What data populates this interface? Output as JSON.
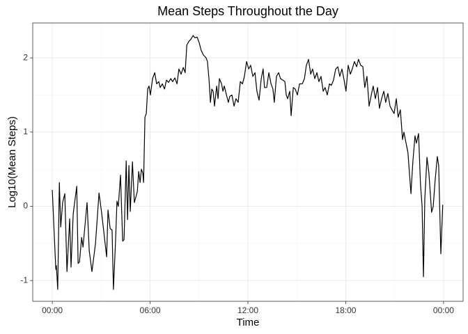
{
  "chart_data": {
    "type": "line",
    "title": "Mean Steps Throughout the Day",
    "x_label": "Time",
    "y_label": "Log10(Mean Steps)",
    "color": "#000000",
    "grid": true,
    "x": [
      0,
      8,
      13,
      15,
      20,
      26,
      31,
      38,
      46,
      54,
      64,
      69,
      77,
      90,
      95,
      100,
      108,
      113,
      128,
      136,
      146,
      159,
      172,
      182,
      200,
      205,
      213,
      220,
      225,
      233,
      238,
      243,
      251,
      259,
      264,
      272,
      277,
      282,
      287,
      295,
      302,
      313,
      318,
      323,
      328,
      333,
      336,
      341,
      346,
      351,
      356,
      361,
      369,
      377,
      384,
      392,
      397,
      405,
      413,
      420,
      428,
      436,
      443,
      451,
      459,
      466,
      474,
      482,
      489,
      495,
      502,
      510,
      518,
      525,
      533,
      541,
      548,
      556,
      566,
      571,
      577,
      582,
      587,
      592,
      597,
      605,
      610,
      615,
      623,
      628,
      633,
      641,
      648,
      653,
      661,
      669,
      676,
      684,
      692,
      700,
      707,
      715,
      723,
      730,
      738,
      746,
      753,
      761,
      769,
      776,
      781,
      789,
      797,
      805,
      812,
      817,
      825,
      833,
      840,
      848,
      856,
      861,
      866,
      874,
      879,
      887,
      894,
      902,
      910,
      920,
      928,
      935,
      943,
      951,
      958,
      966,
      974,
      981,
      989,
      997,
      1004,
      1012,
      1020,
      1027,
      1035,
      1043,
      1051,
      1058,
      1066,
      1074,
      1081,
      1089,
      1097,
      1104,
      1112,
      1120,
      1127,
      1135,
      1143,
      1150,
      1158,
      1166,
      1174,
      1181,
      1189,
      1197,
      1204,
      1212,
      1220,
      1227,
      1235,
      1243,
      1250,
      1258,
      1266,
      1273,
      1281,
      1289,
      1294,
      1302,
      1309,
      1320,
      1327,
      1335,
      1340,
      1348,
      1355,
      1361,
      1366,
      1371,
      1379,
      1386,
      1396,
      1402,
      1409,
      1417,
      1422,
      1430,
      1437
    ],
    "values": [
      0.22,
      -0.45,
      -0.85,
      -0.8,
      -1.12,
      0.32,
      -0.28,
      0.05,
      0.17,
      -0.88,
      -0.17,
      -0.82,
      -0.1,
      0.27,
      -0.77,
      -0.75,
      -0.42,
      -0.55,
      0.05,
      -0.6,
      -0.88,
      -0.5,
      0.18,
      -0.1,
      -0.68,
      -0.05,
      -0.3,
      -0.32,
      -1.12,
      -0.45,
      0.07,
      0.0,
      0.42,
      -0.47,
      -0.45,
      0.61,
      -0.18,
      0.55,
      -0.07,
      0.6,
      0.05,
      0.2,
      0.47,
      0.32,
      0.5,
      0.45,
      0.32,
      1.2,
      1.25,
      1.58,
      1.62,
      1.5,
      1.72,
      1.8,
      1.65,
      1.68,
      1.6,
      1.65,
      1.58,
      1.7,
      1.67,
      1.72,
      1.68,
      1.73,
      1.65,
      1.85,
      1.78,
      1.87,
      1.8,
      2.17,
      2.22,
      2.25,
      2.3,
      2.27,
      2.28,
      2.2,
      2.1,
      2.04,
      2.0,
      1.95,
      1.7,
      1.4,
      1.58,
      1.55,
      1.35,
      1.62,
      1.45,
      1.72,
      1.65,
      1.55,
      1.62,
      1.5,
      1.4,
      1.48,
      1.5,
      1.35,
      1.45,
      1.4,
      1.68,
      1.65,
      1.75,
      1.95,
      1.85,
      1.9,
      1.75,
      1.8,
      1.55,
      1.43,
      1.72,
      1.85,
      1.6,
      1.6,
      1.8,
      1.65,
      1.58,
      1.4,
      1.75,
      1.8,
      1.72,
      1.7,
      1.68,
      1.5,
      1.45,
      1.55,
      1.22,
      1.6,
      1.58,
      1.5,
      1.65,
      1.65,
      1.72,
      1.9,
      1.98,
      1.78,
      1.85,
      1.72,
      1.8,
      1.68,
      1.75,
      1.55,
      1.6,
      1.5,
      1.65,
      1.63,
      1.7,
      1.85,
      1.88,
      1.75,
      1.85,
      1.7,
      1.55,
      1.9,
      1.78,
      1.85,
      1.95,
      1.88,
      1.98,
      1.9,
      1.88,
      1.6,
      1.75,
      1.35,
      1.5,
      1.62,
      1.45,
      1.6,
      1.32,
      1.45,
      1.55,
      1.4,
      1.52,
      1.35,
      1.3,
      1.25,
      1.45,
      1.2,
      1.3,
      0.9,
      1.0,
      0.85,
      0.72,
      0.17,
      0.6,
      0.95,
      0.85,
      0.98,
      0.3,
      0.0,
      -0.95,
      0.1,
      0.66,
      0.45,
      -0.08,
      0.0,
      0.35,
      0.67,
      0.55,
      -0.64,
      0.02
    ],
    "xlim": [
      -72,
      1512
    ],
    "ylim": [
      -1.28,
      2.47
    ],
    "xticks": [
      {
        "value": 0,
        "label": "00:00"
      },
      {
        "value": 360,
        "label": "06:00"
      },
      {
        "value": 720,
        "label": "12:00"
      },
      {
        "value": 1080,
        "label": "18:00"
      },
      {
        "value": 1440,
        "label": "00:00"
      }
    ],
    "yticks": [
      -1,
      0,
      1,
      2
    ]
  }
}
